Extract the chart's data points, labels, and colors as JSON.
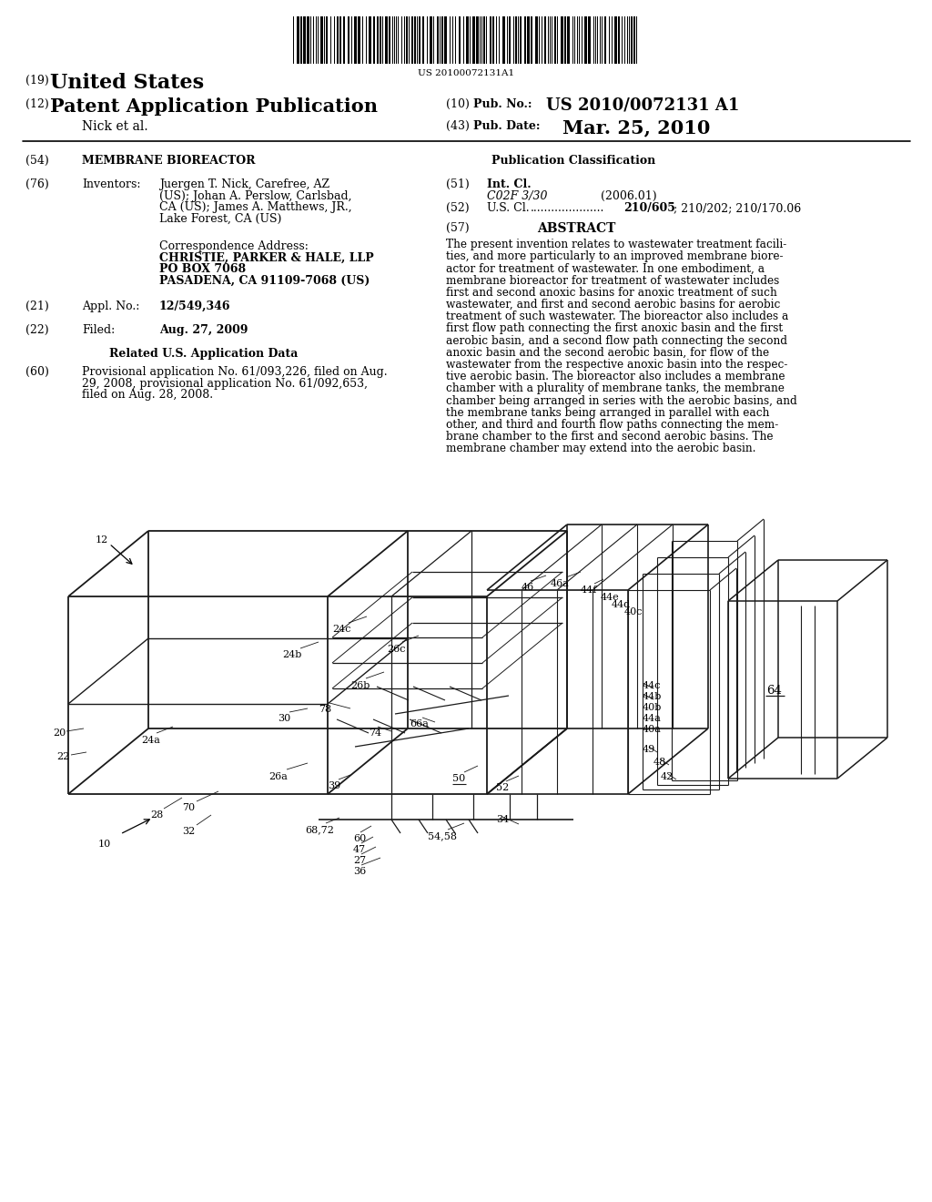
{
  "bg_color": "#ffffff",
  "barcode_text": "US 20100072131A1",
  "title_19": "(19) United States",
  "title_12": "(12) Patent Application Publication",
  "author": "Nick et al.",
  "pub_no_label": "(10) Pub. No.:",
  "pub_no": "US 2010/0072131 A1",
  "pub_date_label": "(43) Pub. Date:",
  "pub_date": "Mar. 25, 2010",
  "section54_label": "(54)",
  "section54": "MEMBRANE BIOREACTOR",
  "section76_label": "(76)",
  "section76_title": "Inventors:",
  "section76_text1": "Juergen T. Nick, Carefree, AZ",
  "section76_text2": "(US); Johan A. Perslow, Carlsbad,",
  "section76_text3": "CA (US); James A. Matthews, JR.,",
  "section76_text4": "Lake Forest, CA (US)",
  "corr_addr_label": "Correspondence Address:",
  "corr_addr1": "CHRISTIE, PARKER & HALE, LLP",
  "corr_addr2": "PO BOX 7068",
  "corr_addr3": "PASADENA, CA 91109-7068 (US)",
  "section21_label": "(21)",
  "section21_title": "Appl. No.:",
  "section21_text": "12/549,346",
  "section22_label": "(22)",
  "section22_title": "Filed:",
  "section22_text": "Aug. 27, 2009",
  "related_title": "Related U.S. Application Data",
  "section60_label": "(60)",
  "section60_text1": "Provisional application No. 61/093,226, filed on Aug.",
  "section60_text2": "29, 2008, provisional application No. 61/092,653,",
  "section60_text3": "filed on Aug. 28, 2008.",
  "pub_class_title": "Publication Classification",
  "int_cl_label": "(51)",
  "int_cl_title": "Int. Cl.",
  "int_cl_code": "C02F 3/30",
  "int_cl_year": "(2006.01)",
  "us_cl_label": "(52)",
  "us_cl_title": "U.S. Cl.",
  "us_cl_dots": ".....................",
  "us_cl_text": "210/605; 210/202; 210/170.06",
  "abstract_label": "(57)",
  "abstract_title": "ABSTRACT",
  "abstract_lines": [
    "The present invention relates to wastewater treatment facili-",
    "ties, and more particularly to an improved membrane biore-",
    "actor for treatment of wastewater. In one embodiment, a",
    "membrane bioreactor for treatment of wastewater includes",
    "first and second anoxic basins for anoxic treatment of such",
    "wastewater, and first and second aerobic basins for aerobic",
    "treatment of such wastewater. The bioreactor also includes a",
    "first flow path connecting the first anoxic basin and the first",
    "aerobic basin, and a second flow path connecting the second",
    "anoxic basin and the second aerobic basin, for flow of the",
    "wastewater from the respective anoxic basin into the respec-",
    "tive aerobic basin. The bioreactor also includes a membrane",
    "chamber with a plurality of membrane tanks, the membrane",
    "chamber being arranged in series with the aerobic basins, and",
    "the membrane tanks being arranged in parallel with each",
    "other, and third and fourth flow paths connecting the mem-",
    "brane chamber to the first and second aerobic basins. The",
    "membrane chamber may extend into the aerobic basin."
  ]
}
